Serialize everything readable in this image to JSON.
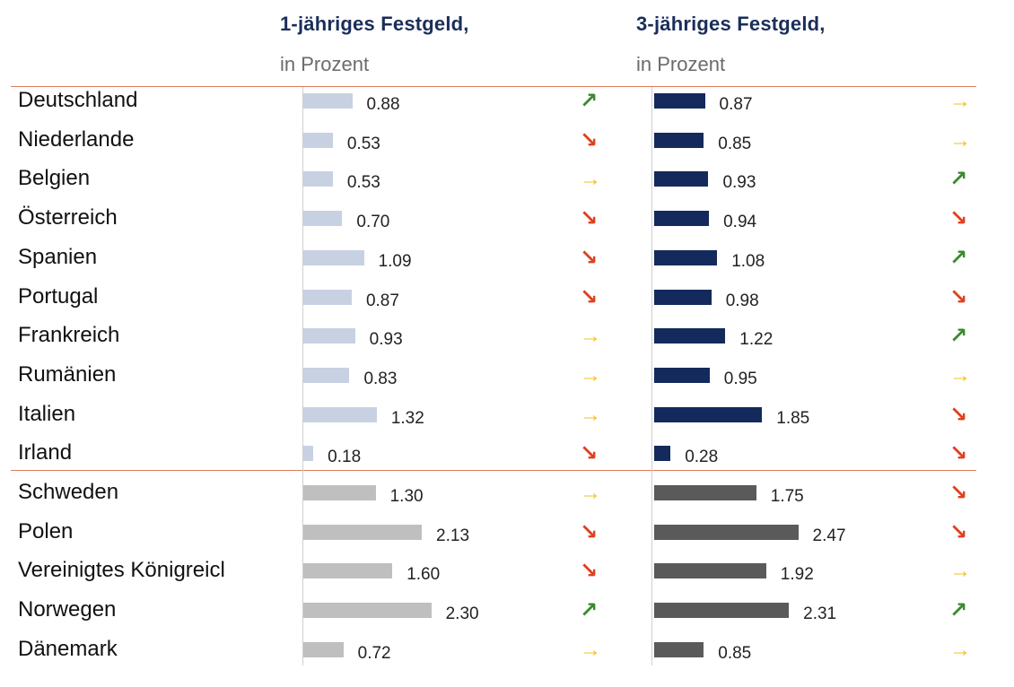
{
  "headers": {
    "col1_title": "1-jähriges Festgeld,",
    "col1_unit": "in Prozent",
    "col2_title": "3-jähriges Festgeld,",
    "col2_unit": "in Prozent"
  },
  "colors": {
    "header": "#1a2e5a",
    "rule": "#e07a5a",
    "bar1_euro": "#c7d1e2",
    "bar2_euro": "#142a5c",
    "bar1_other": "#bfbfbf",
    "bar2_other": "#5a5a5a",
    "up": "#3a8a2e",
    "flat": "#f0c020",
    "down": "#e0401e"
  },
  "icons": {
    "up": "arrow-up-right-icon",
    "flat": "arrow-right-icon",
    "down": "arrow-down-right-icon"
  },
  "chart_data": {
    "type": "bar",
    "orientation": "horizontal",
    "categories": [
      "Deutschland",
      "Niederlande",
      "Belgien",
      "Österreich",
      "Spanien",
      "Portugal",
      "Frankreich",
      "Rumänien",
      "Italien",
      "Irland",
      "Schweden",
      "Polen",
      "Vereinigtes Königreicl",
      "Norwegen",
      "Dänemark"
    ],
    "series": [
      {
        "name": "1-jähriges Festgeld, in Prozent",
        "values": [
          0.88,
          0.53,
          0.53,
          0.7,
          1.09,
          0.87,
          0.93,
          0.83,
          1.32,
          0.18,
          1.3,
          2.13,
          1.6,
          2.3,
          0.72
        ],
        "labels": [
          "0.88",
          "0.53",
          "0.53",
          "0.70",
          "1.09",
          "0.87",
          "0.93",
          "0.83",
          "1.32",
          "0.18",
          "1.30",
          "2.13",
          "1.60",
          "2.30",
          "0.72"
        ],
        "trend": [
          "up",
          "down",
          "flat",
          "down",
          "down",
          "down",
          "flat",
          "flat",
          "flat",
          "down",
          "flat",
          "down",
          "down",
          "up",
          "flat"
        ]
      },
      {
        "name": "3-jähriges Festgeld, in Prozent",
        "values": [
          0.87,
          0.85,
          0.93,
          0.94,
          1.08,
          0.98,
          1.22,
          0.95,
          1.85,
          0.28,
          1.75,
          2.47,
          1.92,
          2.31,
          0.85
        ],
        "labels": [
          "0.87",
          "0.85",
          "0.93",
          "0.94",
          "1.08",
          "0.98",
          "1.22",
          "0.95",
          "1.85",
          "0.28",
          "1.75",
          "2.47",
          "1.92",
          "2.31",
          "0.85"
        ],
        "trend": [
          "flat",
          "flat",
          "up",
          "down",
          "up",
          "down",
          "up",
          "flat",
          "down",
          "down",
          "down",
          "down",
          "flat",
          "up",
          "flat"
        ]
      }
    ],
    "groups": [
      {
        "rows": [
          0,
          9
        ],
        "style": "euro"
      },
      {
        "rows": [
          10,
          14
        ],
        "style": "other"
      }
    ],
    "xlim": [
      0,
      2.5
    ],
    "grid": false,
    "legend": "none"
  }
}
